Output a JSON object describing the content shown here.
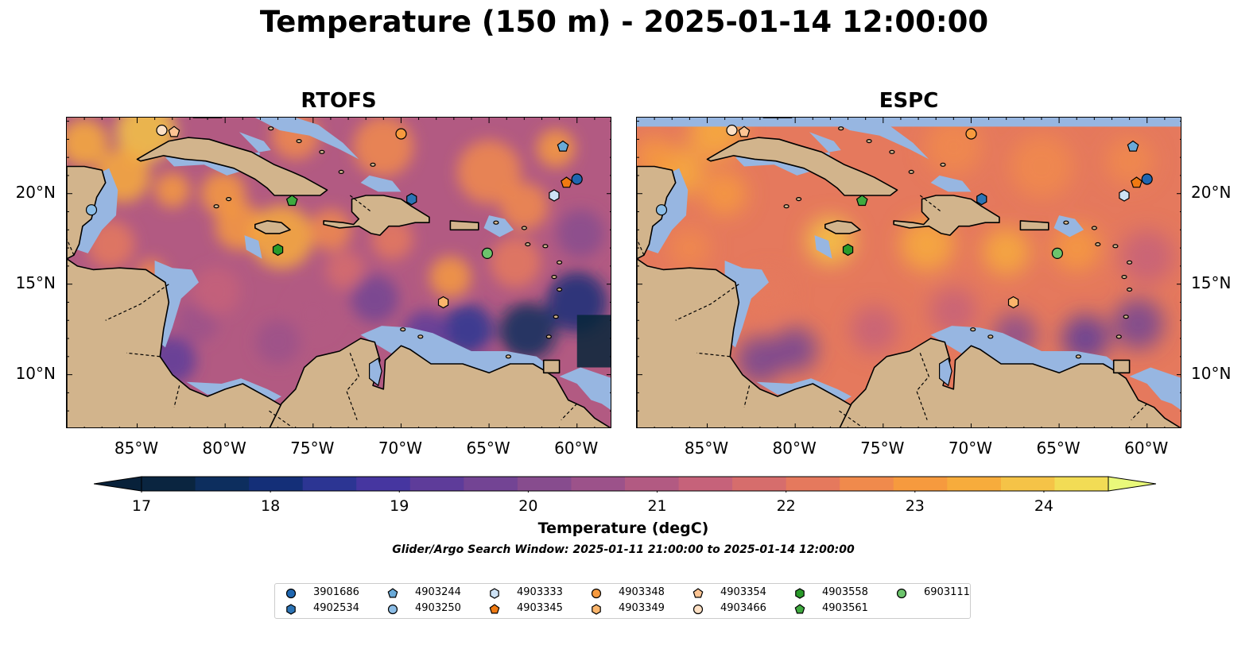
{
  "title": "Temperature (150 m) - 2025-01-14 12:00:00",
  "panels": [
    {
      "title": "RTOFS"
    },
    {
      "title": "ESPC"
    }
  ],
  "map_extent": {
    "lon_min": -89,
    "lon_max": -58,
    "lat_min": 7,
    "lat_max": 24.2
  },
  "lon_ticks": [
    {
      "value": -85,
      "label": "85°W"
    },
    {
      "value": -80,
      "label": "80°W"
    },
    {
      "value": -75,
      "label": "75°W"
    },
    {
      "value": -70,
      "label": "70°W"
    },
    {
      "value": -65,
      "label": "65°W"
    },
    {
      "value": -60,
      "label": "60°W"
    }
  ],
  "lat_ticks": [
    {
      "value": 10,
      "label": "10°N"
    },
    {
      "value": 15,
      "label": "15°N"
    },
    {
      "value": 20,
      "label": "20°N"
    }
  ],
  "colorbar": {
    "label": "Temperature (degC)",
    "min": 17,
    "max": 24.5,
    "step": 0.5,
    "extend": "both",
    "ticks": [
      {
        "value": 17,
        "label": "17"
      },
      {
        "value": 18,
        "label": "18"
      },
      {
        "value": 19,
        "label": "19"
      },
      {
        "value": 20,
        "label": "20"
      },
      {
        "value": 21,
        "label": "21"
      },
      {
        "value": 22,
        "label": "22"
      },
      {
        "value": 23,
        "label": "23"
      },
      {
        "value": 24,
        "label": "24"
      }
    ],
    "colors": [
      "#0a2540",
      "#0d2e5e",
      "#142f78",
      "#2c3593",
      "#4636a0",
      "#5e3c9a",
      "#734494",
      "#874c8e",
      "#9c528a",
      "#b25a82",
      "#c6627a",
      "#d66d6c",
      "#e5795d",
      "#f08a4c",
      "#f69a3e",
      "#f7ac3c",
      "#f5c347",
      "#f2dc55"
    ],
    "under_color": "#08213a",
    "over_color": "#e9f97a"
  },
  "colors": {
    "land": "#d2b48c",
    "ocean_shallow": "#97b6e1",
    "deep_ocean": "#06263a"
  },
  "search_window": "Glider/Argo Search Window: 2025-01-11 21:00:00 to 2025-01-14 12:00:00",
  "legend": [
    {
      "id": "3901686",
      "marker": "circle",
      "color": "#1f66b0"
    },
    {
      "id": "4902534",
      "marker": "hexagon",
      "color": "#2c74b5"
    },
    {
      "id": "4903244",
      "marker": "pentagon",
      "color": "#6aaad8"
    },
    {
      "id": "4903250",
      "marker": "circle",
      "color": "#8cbde6"
    },
    {
      "id": "4903333",
      "marker": "hexagon",
      "color": "#cde2f5"
    },
    {
      "id": "4903345",
      "marker": "pentagon",
      "color": "#f07a12"
    },
    {
      "id": "4903348",
      "marker": "circle",
      "color": "#f79a3e"
    },
    {
      "id": "4903349",
      "marker": "hexagon",
      "color": "#fbb56b"
    },
    {
      "id": "4903354",
      "marker": "pentagon",
      "color": "#fcc493"
    },
    {
      "id": "4903466",
      "marker": "circle",
      "color": "#fde0c4"
    },
    {
      "id": "4903558",
      "marker": "hexagon",
      "color": "#2a9a2a"
    },
    {
      "id": "4903561",
      "marker": "pentagon",
      "color": "#3faa3f"
    },
    {
      "id": "6903111",
      "marker": "circle",
      "color": "#6cc46c"
    }
  ],
  "floats": [
    {
      "id": "3901686",
      "lon": -60.0,
      "lat": 20.8
    },
    {
      "id": "4902534",
      "lon": -69.4,
      "lat": 19.7
    },
    {
      "id": "4903244",
      "lon": -60.8,
      "lat": 22.6
    },
    {
      "id": "4903250",
      "lon": -87.6,
      "lat": 19.1
    },
    {
      "id": "4903333",
      "lon": -61.3,
      "lat": 19.9
    },
    {
      "id": "4903345",
      "lon": -60.6,
      "lat": 20.6
    },
    {
      "id": "4903348",
      "lon": -70.0,
      "lat": 23.3
    },
    {
      "id": "4903349",
      "lon": -67.6,
      "lat": 14.0
    },
    {
      "id": "4903354",
      "lon": -82.9,
      "lat": 23.4
    },
    {
      "id": "4903466",
      "lon": -83.6,
      "lat": 23.5
    },
    {
      "id": "4903558",
      "lon": -77.0,
      "lat": 16.9
    },
    {
      "id": "4903561",
      "lon": -76.2,
      "lat": 19.6
    },
    {
      "id": "6903111",
      "lon": -65.1,
      "lat": 16.7
    }
  ]
}
